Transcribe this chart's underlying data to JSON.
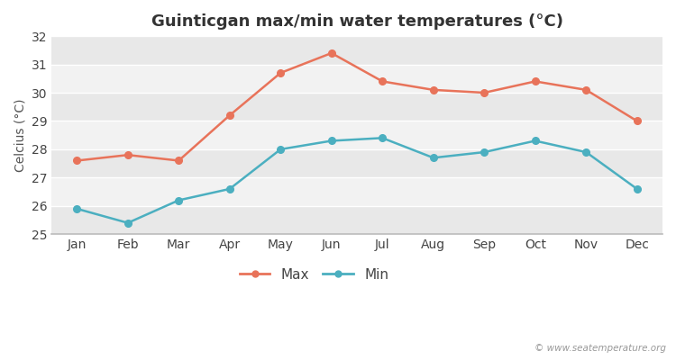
{
  "title": "Guinticgan max/min water temperatures (°C)",
  "ylabel": "Celcius (°C)",
  "months": [
    "Jan",
    "Feb",
    "Mar",
    "Apr",
    "May",
    "Jun",
    "Jul",
    "Aug",
    "Sep",
    "Oct",
    "Nov",
    "Dec"
  ],
  "max_temps": [
    27.6,
    27.8,
    27.6,
    29.2,
    30.7,
    31.4,
    30.4,
    30.1,
    30.0,
    30.4,
    30.1,
    29.0
  ],
  "min_temps": [
    25.9,
    25.4,
    26.2,
    26.6,
    28.0,
    28.3,
    28.4,
    27.7,
    27.9,
    28.3,
    27.9,
    26.6
  ],
  "max_color": "#e8735a",
  "min_color": "#4bafc0",
  "outer_bg": "#ffffff",
  "plot_bg_dark": "#e8e8e8",
  "plot_bg_light": "#f2f2f2",
  "grid_color": "#ffffff",
  "spine_color": "#bbbbbb",
  "ylim": [
    25,
    32
  ],
  "yticks": [
    25,
    26,
    27,
    28,
    29,
    30,
    31,
    32
  ],
  "watermark": "© www.seatemperature.org",
  "legend_max": "Max",
  "legend_min": "Min",
  "title_fontsize": 13,
  "axis_fontsize": 10,
  "tick_fontsize": 10
}
